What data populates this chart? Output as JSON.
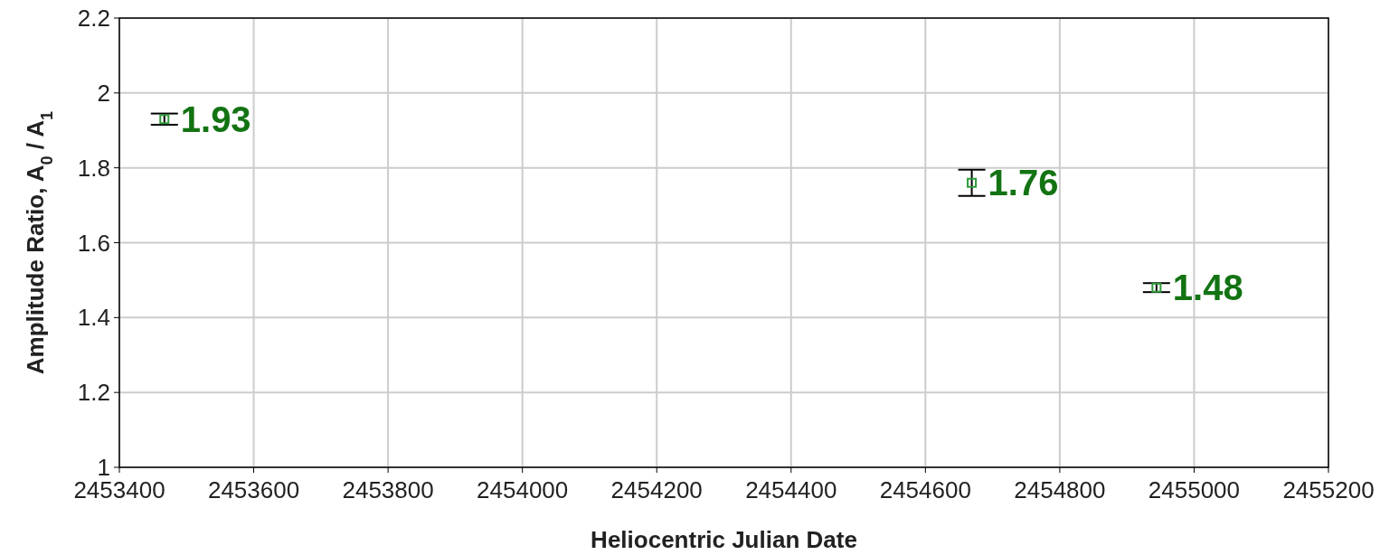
{
  "chart_data": {
    "type": "scatter",
    "xlabel": "Heliocentric Julian Date",
    "ylabel": "Amplitude Ratio, A$_{0}$ / A$_{1}$",
    "x": [
      2453467,
      2454669,
      2454944
    ],
    "series": [
      {
        "color": "#2e9a3a",
        "values": [
          1.93,
          1.76,
          1.48
        ],
        "errors": [
          0.015,
          0.035,
          0.012
        ]
      }
    ],
    "xlim": [
      2453400,
      2455200
    ],
    "xticks": [
      2453400,
      2453600,
      2453800,
      2454000,
      2454200,
      2454400,
      2454600,
      2454800,
      2455000,
      2455200
    ],
    "ylim": [
      1,
      2.2
    ],
    "yticks": [
      1,
      1.2,
      1.4,
      1.6,
      1.8,
      2,
      2.2
    ],
    "grid": true,
    "marker": "square",
    "data_labels": true
  }
}
